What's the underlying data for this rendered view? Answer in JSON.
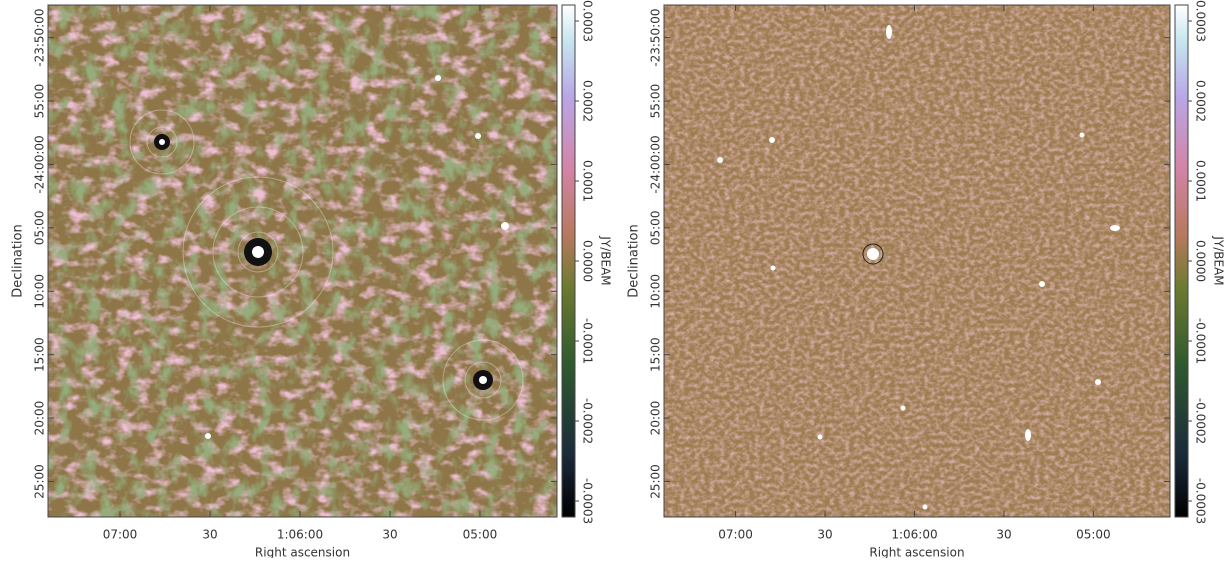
{
  "panels": [
    {
      "x_label": "Right ascension",
      "y_label": "Declination",
      "xlim": [
        16.85,
        16.143
      ],
      "xticks": [
        {
          "value": 16.75,
          "label": "07:00"
        },
        {
          "value": 16.625,
          "label": "30"
        },
        {
          "value": 16.5,
          "label": "1:06:00"
        },
        {
          "value": 16.375,
          "label": "30"
        },
        {
          "value": 16.25,
          "label": "05:00"
        }
      ],
      "ylim": [
        -24.4634,
        -23.7904
      ],
      "yticks": [
        {
          "value": -23.8333,
          "label": "-23:50:00"
        },
        {
          "value": -23.9167,
          "label": "55:00"
        },
        {
          "value": -24.0,
          "label": "-24:00:00"
        },
        {
          "value": -24.0833,
          "label": "05:00"
        },
        {
          "value": -24.1667,
          "label": "10:00"
        },
        {
          "value": -24.25,
          "label": "15:00"
        },
        {
          "value": -24.3333,
          "label": "20:00"
        },
        {
          "value": -24.4167,
          "label": "25:00"
        }
      ],
      "colorbar": {
        "label": "JY/BEAM",
        "lim": [
          -0.00032,
          0.00032
        ],
        "ticks": [
          -0.0003,
          -0.0002,
          -0.0001,
          {
            "value": 0,
            "label": "0.0000"
          },
          0.0001,
          0.0002,
          0.0003
        ]
      }
    },
    {
      "x_label": "Right ascension",
      "y_label": "Declination",
      "xlim": [
        16.85,
        16.143
      ],
      "xticks": [
        {
          "value": 16.75,
          "label": "07:00"
        },
        {
          "value": 16.625,
          "label": "30"
        },
        {
          "value": 16.5,
          "label": "1:06:00"
        },
        {
          "value": 16.375,
          "label": "30"
        },
        {
          "value": 16.25,
          "label": "05:00"
        }
      ],
      "ylim": [
        -24.4634,
        -23.7904
      ],
      "yticks": [
        {
          "value": -23.8333,
          "label": "-23:50:00"
        },
        {
          "value": -23.9167,
          "label": "55:00"
        },
        {
          "value": -24.0,
          "label": "-24:00:00"
        },
        {
          "value": -24.0833,
          "label": "05:00"
        },
        {
          "value": -24.1667,
          "label": "10:00"
        },
        {
          "value": -24.25,
          "label": "15:00"
        },
        {
          "value": -24.3333,
          "label": "20:00"
        },
        {
          "value": -24.4167,
          "label": "25:00"
        }
      ],
      "colorbar": {
        "label": "JY/BEAM",
        "lim": [
          -0.00032,
          0.00032
        ],
        "ticks": [
          -0.0003,
          -0.0002,
          -0.0001,
          {
            "value": 0,
            "label": "0.0000"
          },
          0.0001,
          0.0002,
          0.0003
        ]
      }
    }
  ]
}
